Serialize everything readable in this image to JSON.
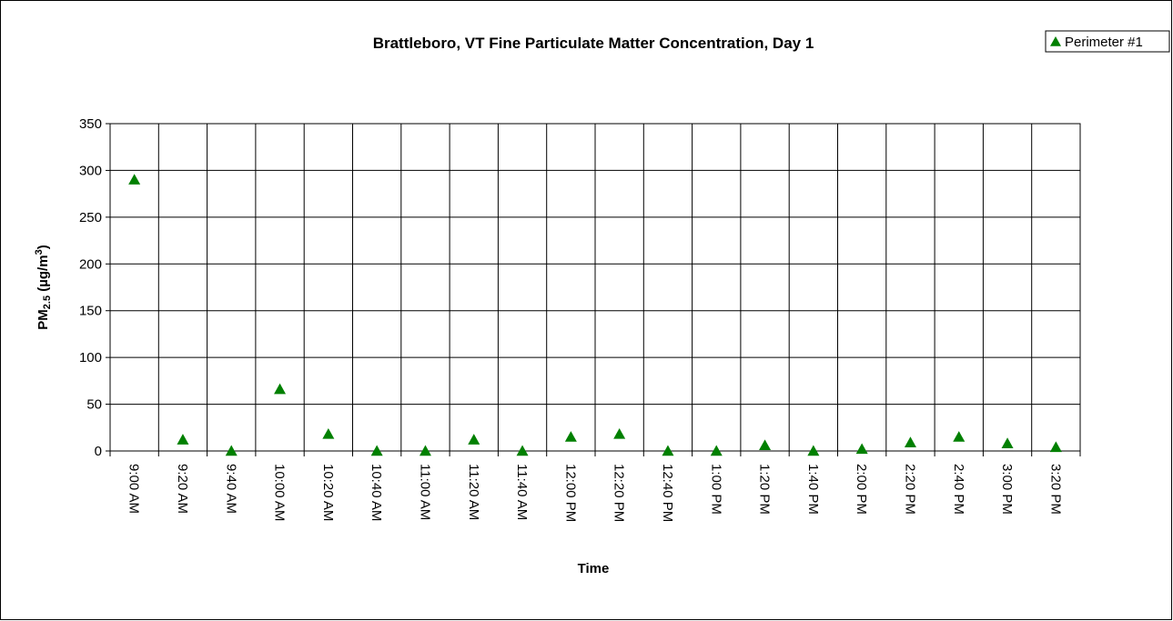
{
  "chart_data": {
    "type": "scatter",
    "title": "Brattleboro, VT Fine Particulate Matter Concentration, Day 1",
    "x_label": "Time",
    "y_label_parts": [
      "PM",
      "2.5",
      " (µg/m",
      "3",
      ")"
    ],
    "categories": [
      "9:00 AM",
      "9:20 AM",
      "9:40 AM",
      "10:00 AM",
      "10:20 AM",
      "10:40 AM",
      "11:00 AM",
      "11:20 AM",
      "11:40 AM",
      "12:00 PM",
      "12:20 PM",
      "12:40 PM",
      "1:00 PM",
      "1:20 PM",
      "1:40 PM",
      "2:00 PM",
      "2:20 PM",
      "2:40 PM",
      "3:00 PM",
      "3:20 PM"
    ],
    "series": [
      {
        "name": "Perimeter #1",
        "color": "#008000",
        "values": [
          290,
          12,
          0,
          66,
          18,
          0,
          0,
          12,
          0,
          15,
          18,
          0,
          0,
          6,
          0,
          2,
          9,
          15,
          8,
          4
        ]
      }
    ],
    "ylim": [
      0,
      350
    ],
    "yticks": [
      0,
      50,
      100,
      150,
      200,
      250,
      300,
      350
    ],
    "grid": true,
    "legend": "top-right"
  }
}
